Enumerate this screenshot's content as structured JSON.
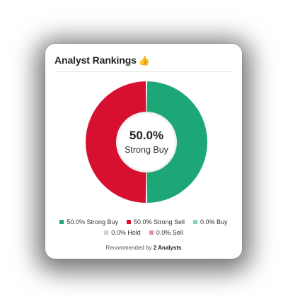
{
  "card": {
    "title": "Analyst Rankings",
    "title_icon": "thumbs-up-icon",
    "center_value": "50.0%",
    "center_label": "Strong Buy",
    "footer_prefix": "Recommended by",
    "footer_count": "2 Analysts"
  },
  "colors": {
    "strong_buy": "#1da676",
    "strong_sell": "#d8102f",
    "buy": "#7ad6b6",
    "hold": "#cfcfcf",
    "sell": "#e38d9b"
  },
  "chart_data": {
    "type": "pie",
    "categories": [
      "Strong Buy",
      "Strong Sell",
      "Buy",
      "Hold",
      "Sell"
    ],
    "values": [
      50.0,
      50.0,
      0.0,
      0.0,
      0.0
    ]
  },
  "legend": {
    "row1": [
      {
        "label": "50.0% Strong Buy",
        "color": "#1da676"
      },
      {
        "label": "50.0% Strong Sell",
        "color": "#d8102f"
      },
      {
        "label": "0.0% Buy",
        "color": "#7ad6b6"
      }
    ],
    "row2": [
      {
        "label": "0.0% Hold",
        "color": "#cfcfcf"
      },
      {
        "label": "0.0% Sell",
        "color": "#e38d9b"
      }
    ]
  }
}
